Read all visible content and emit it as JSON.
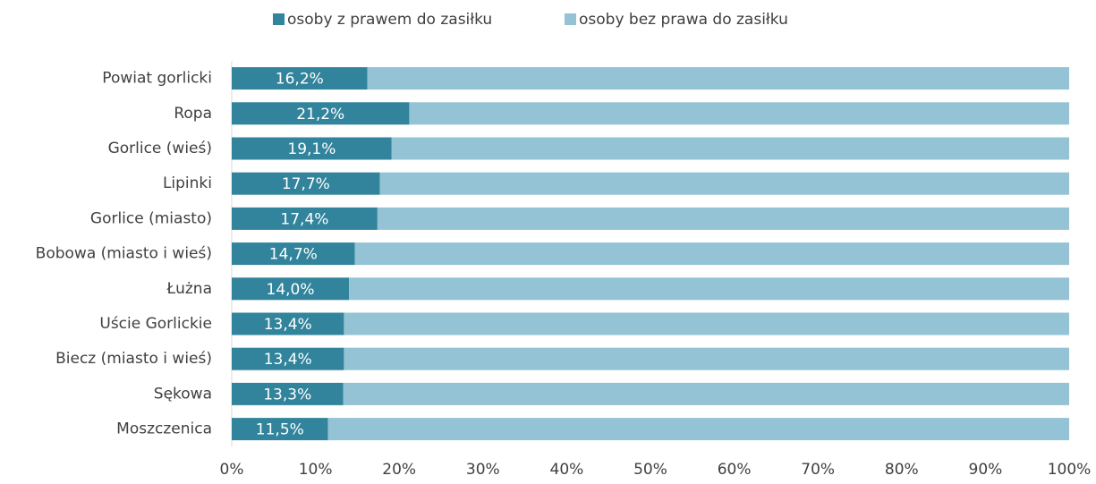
{
  "chart_data": {
    "type": "stacked-barh",
    "categories": [
      "Powiat gorlicki",
      "Ropa",
      "Gorlice (wieś)",
      "Lipinki",
      "Gorlice (miasto)",
      "Bobowa (miasto i wieś)",
      "Łużna",
      "Uście Gorlickie",
      "Biecz (miasto i wieś)",
      "Sękowa",
      "Moszczenica"
    ],
    "series": [
      {
        "name": "osoby z prawem do zasiłku",
        "color": "#31849b",
        "values": [
          16.2,
          21.2,
          19.1,
          17.7,
          17.4,
          14.7,
          14.0,
          13.4,
          13.4,
          13.3,
          11.5
        ],
        "value_labels": [
          "16,2%",
          "21,2%",
          "19,1%",
          "17,7%",
          "17,4%",
          "14,7%",
          "14,0%",
          "13,4%",
          "13,4%",
          "13,3%",
          "11,5%"
        ]
      },
      {
        "name": "osoby bez prawa do zasiłku",
        "color": "#93c3d4",
        "values": [
          83.8,
          78.8,
          80.9,
          82.3,
          82.6,
          85.3,
          86.0,
          86.6,
          86.6,
          86.7,
          88.5
        ]
      }
    ],
    "xlim": [
      0,
      100
    ],
    "xticks": [
      {
        "value": 0,
        "label": "0%"
      },
      {
        "value": 10,
        "label": "10%"
      },
      {
        "value": 20,
        "label": "20%"
      },
      {
        "value": 30,
        "label": "30%"
      },
      {
        "value": 40,
        "label": "40%"
      },
      {
        "value": 50,
        "label": "50%"
      },
      {
        "value": 60,
        "label": "60%"
      },
      {
        "value": 70,
        "label": "70%"
      },
      {
        "value": 80,
        "label": "80%"
      },
      {
        "value": 90,
        "label": "90%"
      },
      {
        "value": 100,
        "label": "100%"
      }
    ],
    "legend": "top"
  }
}
